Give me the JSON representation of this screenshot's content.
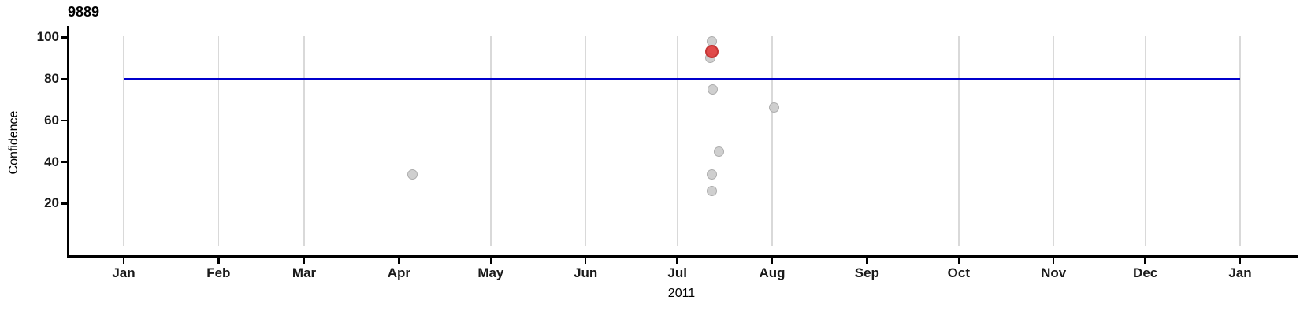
{
  "chart_data": {
    "type": "scatter",
    "title": "9889",
    "xlabel": "2011",
    "ylabel": "Confidence",
    "x_axis": {
      "unit": "months",
      "tick_labels": [
        "Jan",
        "Feb",
        "Mar",
        "Apr",
        "May",
        "Jun",
        "Jul",
        "Aug",
        "Sep",
        "Oct",
        "Nov",
        "Dec",
        "Jan"
      ],
      "tick_day_of_year": [
        0,
        31,
        59,
        90,
        120,
        151,
        181,
        212,
        243,
        273,
        304,
        334,
        365
      ],
      "year_label": "2011",
      "grid": true
    },
    "y_axis": {
      "ticks": [
        100,
        80,
        60,
        40,
        20
      ],
      "range": [
        0,
        104
      ],
      "grid": false
    },
    "reference_line": {
      "value": 80,
      "color": "#0000cc"
    },
    "point_colors": {
      "default": "#cdcdcd",
      "highlight": "#e04242"
    },
    "points": [
      {
        "date": "2011-04-05",
        "day_of_year": 94.3,
        "value": 34,
        "highlighted": false
      },
      {
        "date": "2011-07-12",
        "day_of_year": 192.2,
        "value": 98,
        "highlighted": false
      },
      {
        "date": "2011-07-11",
        "day_of_year": 191.9,
        "value": 90,
        "highlighted": false
      },
      {
        "date": "2011-07-12",
        "day_of_year": 192.5,
        "value": 75,
        "highlighted": false
      },
      {
        "date": "2011-08-01",
        "day_of_year": 212.7,
        "value": 66,
        "highlighted": false
      },
      {
        "date": "2011-07-14",
        "day_of_year": 194.5,
        "value": 45,
        "highlighted": false
      },
      {
        "date": "2011-07-12",
        "day_of_year": 192.4,
        "value": 34,
        "highlighted": false
      },
      {
        "date": "2011-07-12",
        "day_of_year": 192.3,
        "value": 26,
        "highlighted": false
      },
      {
        "date": "2011-07-12",
        "day_of_year": 192.2,
        "value": 93,
        "highlighted": true
      }
    ]
  }
}
